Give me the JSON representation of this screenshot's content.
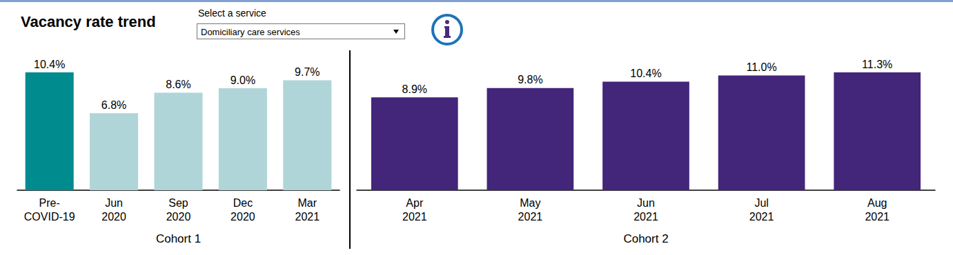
{
  "header": {
    "title": "Vacancy rate trend",
    "select_label": "Select a service",
    "selected": "Domiciliary care services"
  },
  "chart_data": [
    {
      "type": "bar",
      "xlabel": "Cohort 1",
      "categories": [
        "Pre-\nCOVID-19",
        "Jun\n2020",
        "Sep\n2020",
        "Dec\n2020",
        "Mar\n2021"
      ],
      "values": [
        10.4,
        6.8,
        8.6,
        9.0,
        9.7
      ],
      "value_labels": [
        "10.4%",
        "6.8%",
        "8.6%",
        "9.0%",
        "9.7%"
      ],
      "colors": [
        "#008b8f",
        "#b0d5d8",
        "#b0d5d8",
        "#b0d5d8",
        "#b0d5d8"
      ],
      "ylim": [
        0,
        10.4
      ],
      "grid": false,
      "data_labels": true,
      "tick_labels": "x"
    },
    {
      "type": "bar",
      "xlabel": "Cohort 2",
      "categories": [
        "Apr\n2021",
        "May\n2021",
        "Jun\n2021",
        "Jul\n2021",
        "Aug\n2021"
      ],
      "values": [
        8.9,
        9.8,
        10.4,
        11.0,
        11.3
      ],
      "value_labels": [
        "8.9%",
        "9.8%",
        "10.4%",
        "11.0%",
        "11.3%"
      ],
      "color": "#43257a",
      "ylim": [
        0,
        11.3
      ],
      "grid": false,
      "data_labels": true,
      "tick_labels": "x"
    }
  ]
}
